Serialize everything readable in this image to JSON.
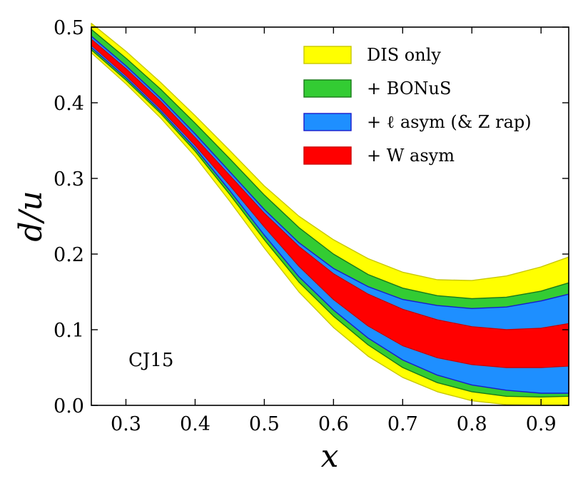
{
  "chart_data": {
    "type": "area",
    "title": "",
    "xlabel": "x",
    "ylabel": "d/u",
    "xlim": [
      0.25,
      0.94
    ],
    "ylim": [
      0.0,
      0.5
    ],
    "xticks": [
      "0.3",
      "0.4",
      "0.5",
      "0.6",
      "0.7",
      "0.8",
      "0.9"
    ],
    "yticks": [
      "0.0",
      "0.1",
      "0.2",
      "0.3",
      "0.4",
      "0.5"
    ],
    "grid": false,
    "legend_position": "top-right",
    "annotation": "CJ15",
    "x": [
      0.25,
      0.3,
      0.35,
      0.4,
      0.45,
      0.5,
      0.55,
      0.6,
      0.65,
      0.7,
      0.75,
      0.8,
      0.85,
      0.9,
      0.94
    ],
    "series": [
      {
        "name": "DIS only",
        "fill": "#ffff00",
        "stroke": "#c8c800",
        "upper": [
          0.505,
          0.468,
          0.427,
          0.383,
          0.337,
          0.29,
          0.25,
          0.219,
          0.194,
          0.176,
          0.166,
          0.165,
          0.171,
          0.183,
          0.196
        ],
        "lower": [
          0.466,
          0.425,
          0.38,
          0.329,
          0.27,
          0.208,
          0.15,
          0.103,
          0.065,
          0.037,
          0.018,
          0.006,
          0.001,
          0.0,
          0.0
        ]
      },
      {
        "name": "+ BONuS",
        "fill": "#33cc33",
        "stroke": "#1a7a1a",
        "upper": [
          0.497,
          0.459,
          0.418,
          0.373,
          0.326,
          0.278,
          0.235,
          0.2,
          0.173,
          0.155,
          0.145,
          0.141,
          0.143,
          0.151,
          0.162
        ],
        "lower": [
          0.47,
          0.43,
          0.386,
          0.336,
          0.279,
          0.219,
          0.163,
          0.118,
          0.08,
          0.05,
          0.03,
          0.018,
          0.012,
          0.011,
          0.012
        ]
      },
      {
        "name": "+ ℓ asym (& Z rap)",
        "fill": "#1e8fff",
        "stroke": "#1a1acc",
        "upper": [
          0.488,
          0.449,
          0.406,
          0.359,
          0.309,
          0.259,
          0.215,
          0.181,
          0.157,
          0.14,
          0.132,
          0.128,
          0.13,
          0.138,
          0.147
        ],
        "lower": [
          0.473,
          0.433,
          0.389,
          0.34,
          0.284,
          0.225,
          0.17,
          0.126,
          0.089,
          0.06,
          0.04,
          0.027,
          0.02,
          0.016,
          0.016
        ]
      },
      {
        "name": "+ W asym",
        "fill": "#ff0000",
        "stroke": "#cc0000",
        "upper": [
          0.484,
          0.445,
          0.402,
          0.354,
          0.304,
          0.254,
          0.21,
          0.174,
          0.147,
          0.127,
          0.113,
          0.104,
          0.1,
          0.102,
          0.108
        ],
        "lower": [
          0.476,
          0.436,
          0.392,
          0.344,
          0.291,
          0.236,
          0.184,
          0.14,
          0.105,
          0.079,
          0.063,
          0.054,
          0.05,
          0.05,
          0.052
        ]
      }
    ]
  }
}
